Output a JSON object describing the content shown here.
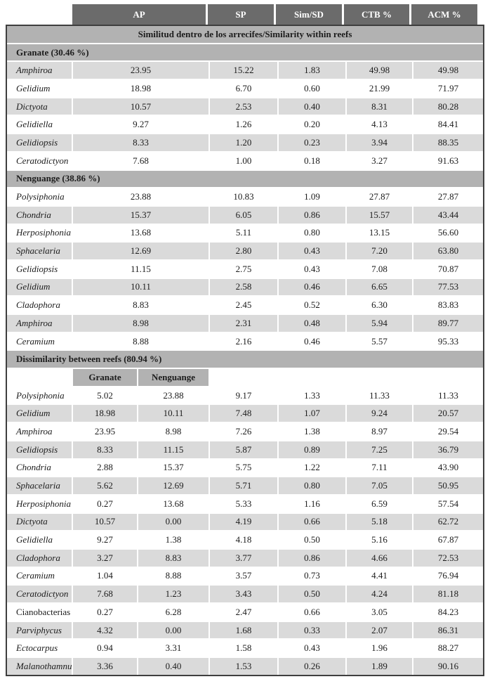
{
  "table": {
    "columns": [
      "AP",
      "SP",
      "Sim/SD",
      "CTB %",
      "ACM %"
    ],
    "title_band": "Similitud dentro de los arrecifes/Similarity within reefs",
    "colors": {
      "header_bg": "#6b6b6b",
      "header_text": "#ffffff",
      "band_bg": "#b2b2b2",
      "stripe_gray": "#dadada",
      "frame_border": "#3e3e3e",
      "text": "#1c1c1c"
    },
    "sections": [
      {
        "header": "Granate (30.46 %)",
        "first_row_shade": "gray",
        "rows": [
          {
            "name": "Amphiroa",
            "italic": true,
            "values": [
              "23.95",
              "15.22",
              "1.83",
              "49.98",
              "49.98"
            ]
          },
          {
            "name": "Gelidium",
            "italic": true,
            "values": [
              "18.98",
              "6.70",
              "0.60",
              "21.99",
              "71.97"
            ]
          },
          {
            "name": "Dictyota",
            "italic": true,
            "values": [
              "10.57",
              "2.53",
              "0.40",
              "8.31",
              "80.28"
            ]
          },
          {
            "name": "Gelidiella",
            "italic": true,
            "values": [
              "9.27",
              "1.26",
              "0.20",
              "4.13",
              "84.41"
            ]
          },
          {
            "name": "Gelidiopsis",
            "italic": true,
            "values": [
              "8.33",
              "1.20",
              "0.23",
              "3.94",
              "88.35"
            ]
          },
          {
            "name": "Ceratodictyon",
            "italic": true,
            "values": [
              "7.68",
              "1.00",
              "0.18",
              "3.27",
              "91.63"
            ]
          }
        ]
      },
      {
        "header": "Nenguange (38.86 %)",
        "first_row_shade": "white",
        "rows": [
          {
            "name": "Polysiphonia",
            "italic": true,
            "values": [
              "23.88",
              "10.83",
              "1.09",
              "27.87",
              "27.87"
            ]
          },
          {
            "name": "Chondria",
            "italic": true,
            "values": [
              "15.37",
              "6.05",
              "0.86",
              "15.57",
              "43.44"
            ]
          },
          {
            "name": "Herposiphonia",
            "italic": true,
            "values": [
              "13.68",
              "5.11",
              "0.80",
              "13.15",
              "56.60"
            ]
          },
          {
            "name": "Sphacelaria",
            "italic": true,
            "values": [
              "12.69",
              "2.80",
              "0.43",
              "7.20",
              "63.80"
            ]
          },
          {
            "name": "Gelidiopsis",
            "italic": true,
            "values": [
              "11.15",
              "2.75",
              "0.43",
              "7.08",
              "70.87"
            ]
          },
          {
            "name": "Gelidium",
            "italic": true,
            "values": [
              "10.11",
              "2.58",
              "0.46",
              "6.65",
              "77.53"
            ]
          },
          {
            "name": "Cladophora",
            "italic": true,
            "values": [
              "8.83",
              "2.45",
              "0.52",
              "6.30",
              "83.83"
            ]
          },
          {
            "name": "Amphiroa",
            "italic": true,
            "values": [
              "8.98",
              "2.31",
              "0.48",
              "5.94",
              "89.77"
            ]
          },
          {
            "name": "Ceramium",
            "italic": true,
            "values": [
              "8.88",
              "2.16",
              "0.46",
              "5.57",
              "95.33"
            ]
          }
        ]
      },
      {
        "header": "Dissimilarity between reefs (80.94 %)",
        "first_row_shade": "white",
        "subcolumns": [
          "Granate",
          "Nenguange"
        ],
        "rows": [
          {
            "name": "Polysiphonia",
            "italic": true,
            "values": [
              "5.02",
              "23.88",
              "9.17",
              "1.33",
              "11.33",
              "11.33"
            ]
          },
          {
            "name": "Gelidium",
            "italic": true,
            "values": [
              "18.98",
              "10.11",
              "7.48",
              "1.07",
              "9.24",
              "20.57"
            ]
          },
          {
            "name": "Amphiroa",
            "italic": true,
            "values": [
              "23.95",
              "8.98",
              "7.26",
              "1.38",
              "8.97",
              "29.54"
            ]
          },
          {
            "name": "Gelidiopsis",
            "italic": true,
            "values": [
              "8.33",
              "11.15",
              "5.87",
              "0.89",
              "7.25",
              "36.79"
            ]
          },
          {
            "name": "Chondria",
            "italic": true,
            "values": [
              "2.88",
              "15.37",
              "5.75",
              "1.22",
              "7.11",
              "43.90"
            ]
          },
          {
            "name": "Sphacelaria",
            "italic": true,
            "values": [
              "5.62",
              "12.69",
              "5.71",
              "0.80",
              "7.05",
              "50.95"
            ]
          },
          {
            "name": "Herposiphonia",
            "italic": true,
            "values": [
              "0.27",
              "13.68",
              "5.33",
              "1.16",
              "6.59",
              "57.54"
            ]
          },
          {
            "name": "Dictyota",
            "italic": true,
            "values": [
              "10.57",
              "0.00",
              "4.19",
              "0.66",
              "5.18",
              "62.72"
            ]
          },
          {
            "name": "Gelidiella",
            "italic": true,
            "values": [
              "9.27",
              "1.38",
              "4.18",
              "0.50",
              "5.16",
              "67.87"
            ]
          },
          {
            "name": "Cladophora",
            "italic": true,
            "values": [
              "3.27",
              "8.83",
              "3.77",
              "0.86",
              "4.66",
              "72.53"
            ]
          },
          {
            "name": "Ceramium",
            "italic": true,
            "values": [
              "1.04",
              "8.88",
              "3.57",
              "0.73",
              "4.41",
              "76.94"
            ]
          },
          {
            "name": "Ceratodictyon",
            "italic": true,
            "values": [
              "7.68",
              "1.23",
              "3.43",
              "0.50",
              "4.24",
              "81.18"
            ]
          },
          {
            "name": "Cianobacterias",
            "italic": false,
            "values": [
              "0.27",
              "6.28",
              "2.47",
              "0.66",
              "3.05",
              "84.23"
            ]
          },
          {
            "name": "Parviphycus",
            "italic": true,
            "values": [
              "4.32",
              "0.00",
              "1.68",
              "0.33",
              "2.07",
              "86.31"
            ]
          },
          {
            "name": "Ectocarpus",
            "italic": true,
            "values": [
              "0.94",
              "3.31",
              "1.58",
              "0.43",
              "1.96",
              "88.27"
            ]
          },
          {
            "name": "Malanothamnus",
            "italic": true,
            "values": [
              "3.36",
              "0.40",
              "1.53",
              "0.26",
              "1.89",
              "90.16"
            ]
          }
        ]
      }
    ]
  }
}
